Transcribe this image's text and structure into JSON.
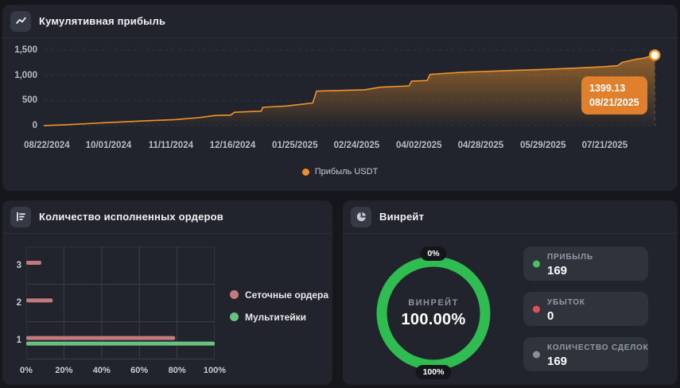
{
  "page": {
    "background": "#15171c"
  },
  "cumulative_panel": {
    "title": "Кумулятивная прибыль",
    "legend": {
      "label": "Прибыль USDT",
      "color": "#ef8e2a"
    },
    "tooltip": {
      "value": "1399.13",
      "date": "08/21/2025",
      "bg": "#e0802d"
    }
  },
  "orders_panel": {
    "title": "Количество исполненных ордеров",
    "legend": [
      {
        "label": "Сеточные ордера",
        "color": "#c4797d"
      },
      {
        "label": "Мультитейки",
        "color": "#68c17e"
      }
    ]
  },
  "winrate_panel": {
    "title": "Винрейт",
    "donut": {
      "top_label": "0%",
      "bottom_label": "100%",
      "center_label": "ВИНРЕЙТ",
      "center_value": "100.00%",
      "value_pct": 100,
      "color": "#2fbc51"
    },
    "stats": [
      {
        "label": "ПРИБЫЛЬ",
        "value": "169",
        "dot_color": "#4cc35a"
      },
      {
        "label": "УБЫТОК",
        "value": "0",
        "dot_color": "#e05252"
      },
      {
        "label": "КОЛИЧЕСТВО СДЕЛОК",
        "value": "169",
        "dot_color": "#8b8f99"
      }
    ]
  },
  "chart_data": [
    {
      "type": "area",
      "title": "Кумулятивная прибыль",
      "xlabel": "",
      "ylabel": "",
      "ylim": [
        0,
        1500
      ],
      "grid": "dashed-horizontal",
      "legend_position": "bottom-center",
      "y_ticks": [
        {
          "label": "1,500",
          "value": 1500
        },
        {
          "label": "1,000",
          "value": 1000
        },
        {
          "label": "500",
          "value": 500
        },
        {
          "label": "0",
          "value": 0
        }
      ],
      "x_ticks": [
        {
          "label": "08/22/2024",
          "pos": 0.005
        },
        {
          "label": "10/01/2024",
          "pos": 0.105
        },
        {
          "label": "11/11/2024",
          "pos": 0.206
        },
        {
          "label": "12/16/2024",
          "pos": 0.306
        },
        {
          "label": "01/25/2025",
          "pos": 0.407
        },
        {
          "label": "02/24/2025",
          "pos": 0.507
        },
        {
          "label": "04/02/2025",
          "pos": 0.608
        },
        {
          "label": "04/28/2025",
          "pos": 0.708
        },
        {
          "label": "05/29/2025",
          "pos": 0.809
        },
        {
          "label": "07/21/2025",
          "pos": 0.909
        }
      ],
      "series": [
        {
          "name": "Прибыль USDT",
          "color": "#f0932b",
          "points": [
            [
              0.0,
              2
            ],
            [
              0.035,
              18
            ],
            [
              0.071,
              40
            ],
            [
              0.11,
              65
            ],
            [
              0.161,
              93
            ],
            [
              0.213,
              120
            ],
            [
              0.251,
              158
            ],
            [
              0.277,
              200
            ],
            [
              0.303,
              210
            ],
            [
              0.309,
              265
            ],
            [
              0.342,
              282
            ],
            [
              0.352,
              285
            ],
            [
              0.355,
              363
            ],
            [
              0.393,
              390
            ],
            [
              0.436,
              450
            ],
            [
              0.442,
              685
            ],
            [
              0.52,
              712
            ],
            [
              0.545,
              762
            ],
            [
              0.592,
              790
            ],
            [
              0.596,
              883
            ],
            [
              0.621,
              895
            ],
            [
              0.626,
              1018
            ],
            [
              0.677,
              1060
            ],
            [
              0.805,
              1115
            ],
            [
              0.857,
              1140
            ],
            [
              0.908,
              1170
            ],
            [
              0.93,
              1190
            ],
            [
              0.937,
              1255
            ],
            [
              0.96,
              1320
            ],
            [
              0.973,
              1342
            ],
            [
              0.99,
              1399.13
            ]
          ]
        }
      ],
      "last_point": {
        "value": 1399.13,
        "date": "08/21/2025"
      }
    },
    {
      "type": "bar",
      "orientation": "horizontal",
      "title": "Количество исполненных ордеров",
      "categories": [
        "3",
        "2",
        "1"
      ],
      "series": [
        {
          "name": "Сеточные ордера",
          "color": "#c4797d",
          "values": [
            8,
            14,
            79
          ]
        },
        {
          "name": "Мультитейки",
          "color": "#68c17e",
          "values": [
            0,
            0,
            100
          ]
        }
      ],
      "xlim": [
        0,
        100
      ],
      "x_ticks": [
        {
          "label": "0%",
          "pos": 0
        },
        {
          "label": "20%",
          "pos": 0.2
        },
        {
          "label": "40%",
          "pos": 0.4
        },
        {
          "label": "60%",
          "pos": 0.6
        },
        {
          "label": "80%",
          "pos": 0.8
        },
        {
          "label": "100%",
          "pos": 1
        }
      ],
      "legend_position": "right"
    },
    {
      "type": "donut",
      "title": "Винрейт",
      "value": 100,
      "display": "100.00%",
      "center_label": "ВИНРЕЙТ",
      "color": "#2fbc51"
    }
  ]
}
